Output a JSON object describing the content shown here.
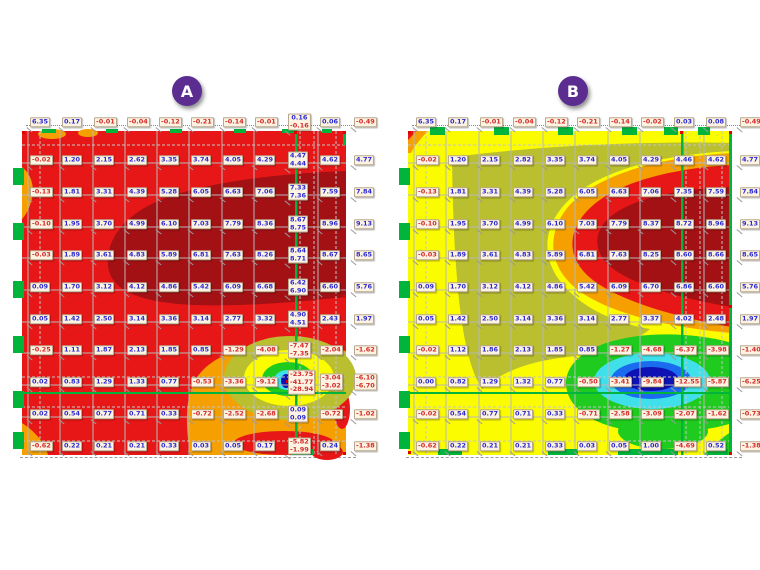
{
  "page": {
    "background": "#ffffff"
  },
  "panels": [
    {
      "badge": "A",
      "badge_color": "#5c2d91"
    },
    {
      "badge": "B",
      "badge_color": "#5c2d91"
    }
  ],
  "palette": {
    "dark_red": "#a31114",
    "red": "#e81717",
    "orange": "#f5a000",
    "olive": "#b9bf2e",
    "yellow": "#fcfc00",
    "green": "#1ecb1e",
    "cyan": "#3fe0ea",
    "blue": "#1a6bee",
    "navy": "#0e12b5",
    "support_green": "#00b43c",
    "grid_gray": "#b8b8b8",
    "label_positive_text": "#2a2ad2",
    "label_negative_text": "#d42a2a",
    "label_background": "#fdf3e2"
  },
  "chart_data": [
    {
      "panel": "A",
      "type": "heatmap",
      "title": "A",
      "rows": [
        [
          "6.35",
          "0.17",
          "-0.01",
          "-0.04",
          "-0.12",
          "-0.21",
          "-0.14",
          "-0.01",
          [
            "0.16",
            "-0.16"
          ],
          "0.06",
          "-0.49"
        ],
        [
          "-0.02",
          "1.20",
          "2.15",
          "2.62",
          "3.35",
          "3.74",
          "4.05",
          "4.29",
          [
            "4.47",
            "4.44"
          ],
          "4.62",
          "4.77"
        ],
        [
          "-0.13",
          "1.81",
          "3.31",
          "4.39",
          "5.28",
          "6.05",
          "6.63",
          "7.06",
          [
            "7.33",
            "7.36"
          ],
          "7.59",
          "7.84"
        ],
        [
          "-0.10",
          "1.95",
          "3.70",
          "4.99",
          "6.10",
          "7.03",
          "7.79",
          "8.36",
          [
            "8.67",
            "8.75"
          ],
          "8.96",
          "9.13"
        ],
        [
          "-0.03",
          "1.89",
          "3.61",
          "4.83",
          "5.89",
          "6.81",
          "7.63",
          "8.26",
          [
            "8.64",
            "8.71"
          ],
          "8.67",
          "8.65"
        ],
        [
          "0.09",
          "1.70",
          "3.12",
          "4.12",
          "4.86",
          "5.42",
          "6.09",
          "6.68",
          [
            "6.42",
            "6.90"
          ],
          "6.60",
          "5.76"
        ],
        [
          "0.05",
          "1.42",
          "2.50",
          "3.14",
          "3.36",
          "3.14",
          "2.77",
          "3.32",
          [
            "4.90",
            "4.51"
          ],
          "2.43",
          "1.97"
        ],
        [
          "-0.25",
          "1.11",
          "1.87",
          "2.13",
          "1.85",
          "0.85",
          "-1.29",
          "-4.08",
          [
            "-7.47",
            "-7.35"
          ],
          "-2.04",
          "-1.62"
        ],
        [
          "0.02",
          "0.83",
          "1.29",
          "1.33",
          "0.77",
          "-0.53",
          "-3.36",
          "-9.12",
          [
            "-23.75",
            "-41.77",
            "-28.94"
          ],
          [
            "-3.04",
            "-3.02"
          ],
          [
            "-6.10",
            "-6.70"
          ]
        ],
        [
          "0.02",
          "0.54",
          "0.77",
          "0.71",
          "0.33",
          "-0.72",
          "-2.52",
          "-2.68",
          [
            "0.09",
            "0.09"
          ],
          "-0.72",
          "-1.02"
        ],
        [
          "-0.62",
          "0.22",
          "0.21",
          "0.21",
          "0.33",
          "0.03",
          "0.05",
          "0.17",
          [
            "-5.82",
            "-1.99"
          ],
          "0.24",
          "-1.38"
        ]
      ]
    },
    {
      "panel": "B",
      "type": "heatmap",
      "title": "B",
      "rows": [
        [
          "6.35",
          "0.17",
          "-0.01",
          "-0.04",
          "-0.12",
          "-0.21",
          "-0.14",
          "-0.02",
          "0.03",
          "0.08",
          "-0.49"
        ],
        [
          "-0.02",
          "1.20",
          "2.15",
          "2.82",
          "3.35",
          "3.74",
          "4.05",
          "4.29",
          "4.46",
          "4.62",
          "4.77"
        ],
        [
          "-0.13",
          "1.81",
          "3.31",
          "4.39",
          "5.28",
          "6.05",
          "6.63",
          "7.06",
          "7.35",
          "7.59",
          "7.84"
        ],
        [
          "-0.10",
          "1.95",
          "3.70",
          "4.99",
          "6.10",
          "7.03",
          "7.79",
          "8.37",
          "8.72",
          "8.96",
          "9.13"
        ],
        [
          "-0.03",
          "1.89",
          "3.61",
          "4.83",
          "5.89",
          "6.81",
          "7.63",
          "8.25",
          "8.60",
          "8.66",
          "8.65"
        ],
        [
          "0.09",
          "1.70",
          "3.12",
          "4.12",
          "4.86",
          "5.42",
          "6.09",
          "6.70",
          "6.86",
          "6.60",
          "5.76"
        ],
        [
          "0.05",
          "1.42",
          "2.50",
          "3.14",
          "3.36",
          "3.14",
          "2.77",
          "3.37",
          "4.02",
          "2.48",
          "1.97"
        ],
        [
          "-0.02",
          "1.12",
          "1.86",
          "2.13",
          "1.85",
          "0.85",
          "-1.27",
          "-4.68",
          "-6.37",
          "-3.98",
          "-1.40"
        ],
        [
          "0.00",
          "0.82",
          "1.29",
          "1.32",
          "0.77",
          "-0.50",
          "-3.41",
          "-9.84",
          "-12.55",
          "-5.87",
          "-6.25"
        ],
        [
          "-0.02",
          "0.54",
          "0.77",
          "0.71",
          "0.33",
          "-0.71",
          "-2.58",
          "-3.09",
          "-2.07",
          "-1.62",
          "-0.73"
        ],
        [
          "-0.62",
          "0.22",
          "0.21",
          "0.21",
          "0.33",
          "0.03",
          "0.05",
          "1.00",
          "-4.69",
          "0.52",
          "-1.38"
        ]
      ]
    }
  ]
}
